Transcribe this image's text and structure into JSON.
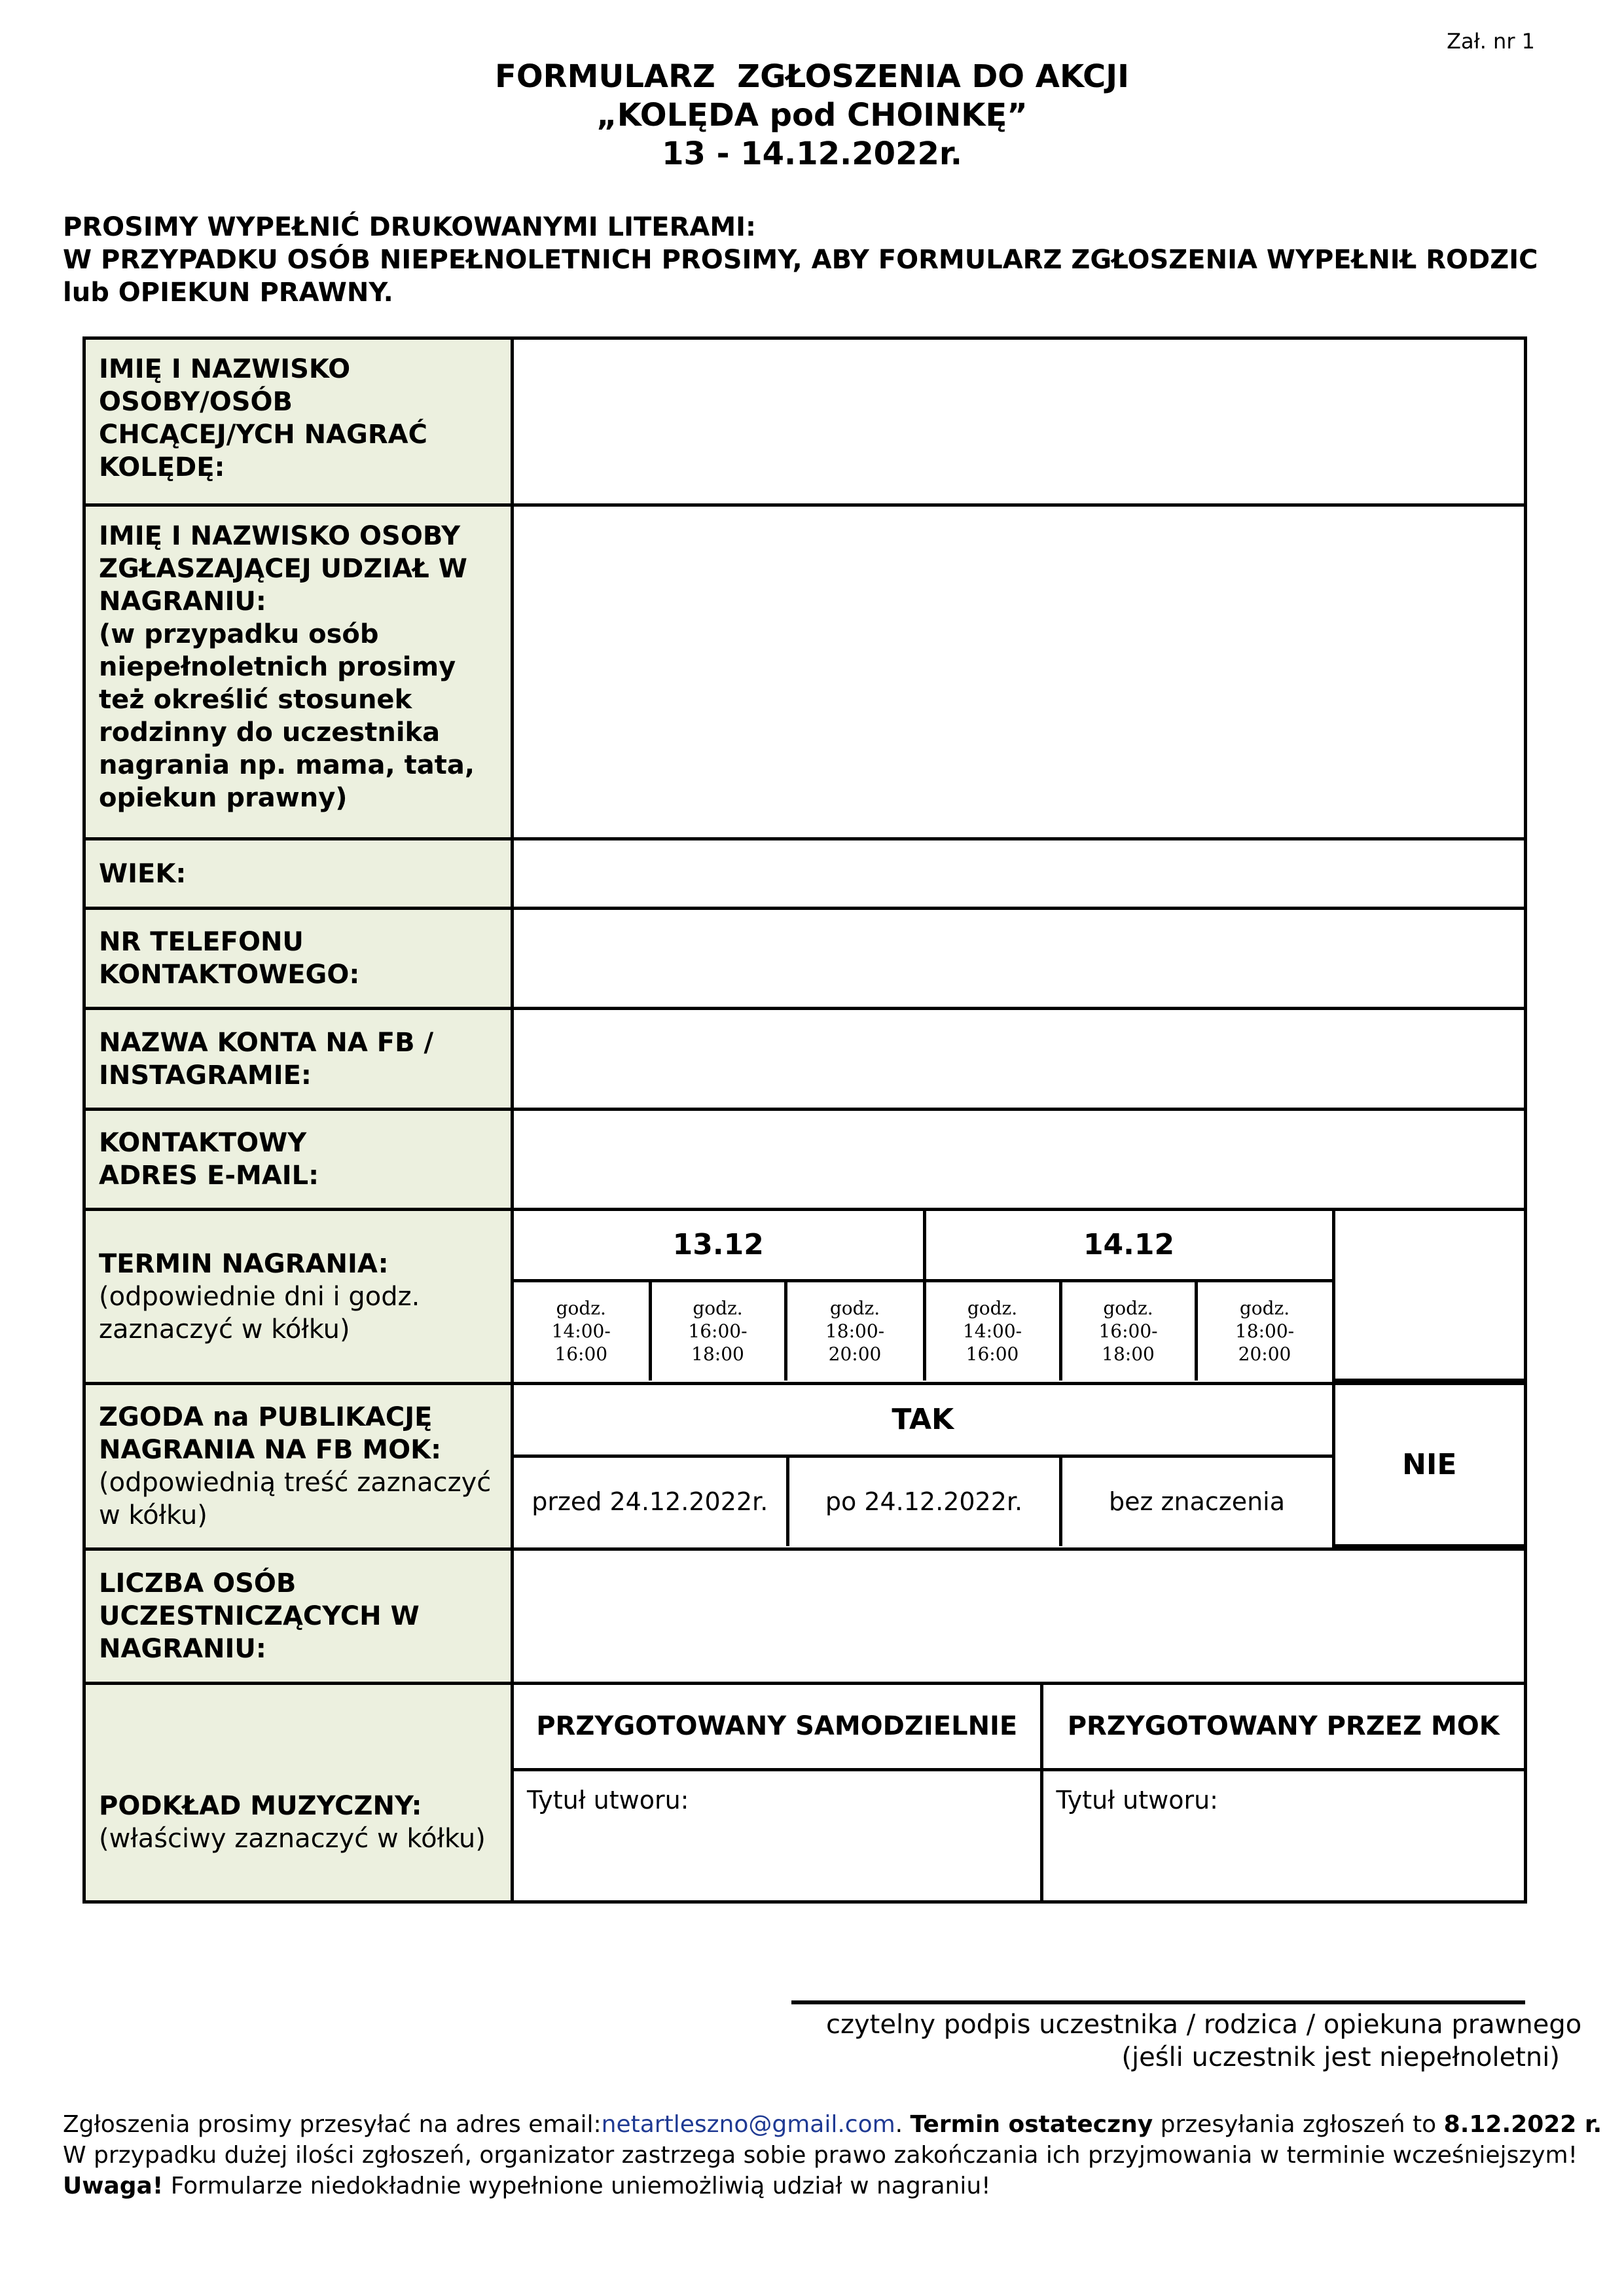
{
  "attachment_label": "Zał. nr 1",
  "title": {
    "line1": "FORMULARZ  ZGŁOSZENIA DO AKCJI",
    "line2": "„KOLĘDA pod CHOINKĘ”",
    "line3": "13 - 14.12.2022r."
  },
  "instructions": {
    "line1": "PROSIMY WYPEŁNIĆ DRUKOWANYMI LITERAMI:",
    "line2": "W PRZYPADKU OSÓB NIEPEŁNOLETNICH PROSIMY, ABY FORMULARZ ZGŁOSZENIA WYPEŁNIŁ RODZIC",
    "line3": "lub OPIEKUN PRAWNY."
  },
  "form": {
    "name": {
      "label": "IMIĘ I NAZWISKO OSOBY/OSÓB CHCĄCEJ/YCH NAGRAĆ KOLĘDĘ:",
      "value": ""
    },
    "applicant": {
      "label": "IMIĘ I NAZWISKO OSOBY ZGŁASZAJĄCEJ UDZIAŁ W NAGRANIU:",
      "note": "(w przypadku osób niepełnoletnich prosimy też określić stosunek rodzinny do uczestnika nagrania np.  mama, tata, opiekun prawny)",
      "value": ""
    },
    "age": {
      "label": "WIEK:",
      "value": ""
    },
    "phone": {
      "label": "NR TELEFONU KONTAKTOWEGO:",
      "value": ""
    },
    "social": {
      "label": "NAZWA KONTA NA FB / INSTAGRAMIE:",
      "value": ""
    },
    "email": {
      "label": "KONTAKTOWY ADRES E-MAIL:",
      "value": ""
    },
    "term": {
      "label": "TERMIN NAGRANIA:",
      "note": "(odpowiednie dni i godz. zaznaczyć w kółku)",
      "days": [
        {
          "date": "13.12",
          "slots": [
            {
              "l1": "godz.",
              "l2": "14:00-",
              "l3": "16:00"
            },
            {
              "l1": "godz.",
              "l2": "16:00-",
              "l3": "18:00"
            },
            {
              "l1": "godz.",
              "l2": "18:00-",
              "l3": "20:00"
            }
          ]
        },
        {
          "date": "14.12",
          "slots": [
            {
              "l1": "godz.",
              "l2": "14:00-",
              "l3": "16:00"
            },
            {
              "l1": "godz.",
              "l2": "16:00-",
              "l3": "18:00"
            },
            {
              "l1": "godz.",
              "l2": "18:00-",
              "l3": "20:00"
            }
          ]
        }
      ]
    },
    "consent": {
      "label": "ZGODA na PUBLIKACJĘ NAGRANIA NA FB MOK:",
      "note": "(odpowiednią treść zaznaczyć w kółku)",
      "yes": "TAK",
      "no": "NIE",
      "options": [
        "przed 24.12.2022r.",
        "po 24.12.2022r.",
        "bez znaczenia"
      ]
    },
    "participants": {
      "label": "LICZBA OSÓB UCZESTNICZĄCYCH W NAGRANIU:",
      "value": ""
    },
    "backing": {
      "label": "PODKŁAD MUZYCZNY:",
      "note": "(właściwy zaznaczyć w kółku)",
      "own": "PRZYGOTOWANY SAMODZIELNIE",
      "mok": "PRZYGOTOWANY PRZEZ MOK",
      "title_label": "Tytuł utworu:"
    }
  },
  "signature": {
    "line1": "czytelny podpis uczestnika / rodzica / opiekuna prawnego",
    "line2": "(jeśli uczestnik jest niepełnoletni)"
  },
  "footer": {
    "p1a": "Zgłoszenia prosimy przesyłać na adres email:",
    "email": "netartleszno@gmail.com",
    "p1b": ". ",
    "deadline_bold": "Termin ostateczny",
    "p1c": " przesyłania zgłoszeń to ",
    "deadline_date": "8.12.2022 r.",
    "line2": "W przypadku dużej ilości zgłoszeń, organizator zastrzega sobie prawo zakończania ich przyjmowania w terminie wcześniejszym!",
    "warn_bold": "Uwaga!",
    "warn_text": " Formularze niedokładnie wypełnione uniemożliwią udział w nagraniu!"
  },
  "colors": {
    "label_bg": "#ecf0df",
    "link": "#1f3a93"
  }
}
